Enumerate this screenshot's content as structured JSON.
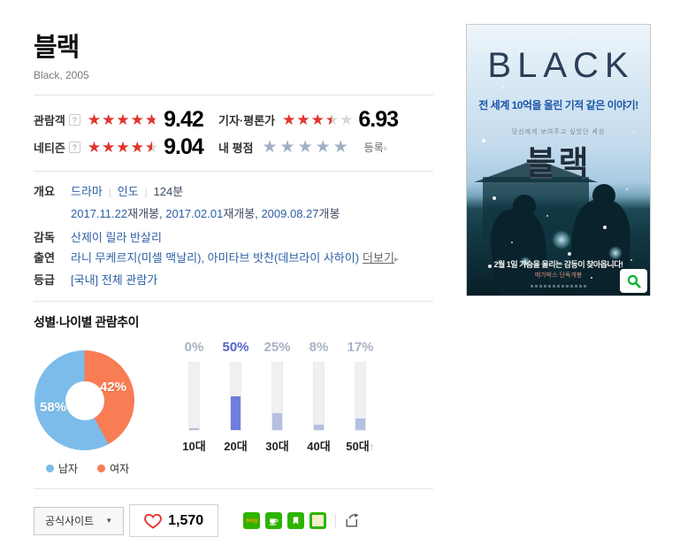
{
  "glyphs": {
    "stars": "★★★★★",
    "pipe": "|",
    "caret_down": "▼",
    "chevron_right": "›",
    "more_arrow": "▸",
    "up_arrow": "↑",
    "help": "?",
    "comma_sep": ", "
  },
  "header": {
    "title": "블랙",
    "subtitle": "Black, 2005"
  },
  "ratings": {
    "audience": {
      "label": "관람객",
      "score": "9.42",
      "stars_percent": 94.2
    },
    "critic": {
      "label": "기자·평론가",
      "score": "6.93",
      "stars_percent": 69.3
    },
    "netizen": {
      "label": "네티즌",
      "score": "9.04",
      "stars_percent": 90.4
    },
    "my": {
      "label": "내 평점",
      "stars_percent": 0,
      "action_label": "등록"
    }
  },
  "info": {
    "overview_label": "개요",
    "genre": "드라마",
    "country": "인도",
    "runtime": "124분",
    "release": [
      {
        "date": "2017.11.22",
        "suffix": "재개봉"
      },
      {
        "date": "2017.02.01",
        "suffix": "재개봉"
      },
      {
        "date": "2009.08.27",
        "suffix": "개봉"
      }
    ],
    "director_label": "감독",
    "director": "산제이 릴라 반살리",
    "cast_label": "출연",
    "cast": "라니 무케르지(미셀 맥날리), 아미타브 밧찬(데브라이 사하이)",
    "more_label": "더보기",
    "grade_label": "등급",
    "grade": "[국내] 전체 관람가"
  },
  "chart_data": [
    {
      "type": "pie",
      "subtype": "donut",
      "title": "성별·나이별 관람추이",
      "categories": [
        "남자",
        "여자"
      ],
      "values": [
        58,
        42
      ],
      "labels": [
        "58%",
        "42%"
      ],
      "unit": "%",
      "colors": [
        "#7cbcea",
        "#f87c54"
      ],
      "legend_position": "bottom"
    },
    {
      "type": "bar",
      "categories": [
        "10대",
        "20대",
        "30대",
        "40대",
        "50대"
      ],
      "values": [
        0,
        50,
        25,
        8,
        17
      ],
      "value_labels": [
        "0%",
        "50%",
        "25%",
        "8%",
        "17%"
      ],
      "unit": "%",
      "ylim": [
        0,
        100
      ],
      "highlight_index": 1,
      "last_suffix": "↑",
      "track_color": "#f0f0f3",
      "fill_color": "#b5c0df",
      "highlight_color": "#6c7ede",
      "label_color": "#a8b2c4",
      "highlight_label_color": "#5563c8"
    }
  ],
  "section_titles": {
    "demographics": "성별·나이별 관람추이"
  },
  "actions": {
    "official_site_label": "공식사이트",
    "like_count": "1,570",
    "blog_icon_text": "blog"
  },
  "poster": {
    "title_en": "BLACK",
    "tagline": "전 세계 10억을 울린 기적 같은 이야기!",
    "small_copy": "당신에게 보여주고 싶었던 세상",
    "title_kr": "블랙",
    "release_copy": "2월 1일 가슴을 울리는 감동이 찾아옵니다!",
    "distributor": "메가박스 단독개봉"
  },
  "colors": {
    "star_red": "#e3342e",
    "star_gray": "#d7d7d7",
    "my_star_gray_blue": "#9fb1c3",
    "link_blue": "#2d5fa5",
    "naver_green": "#2db400",
    "donut_male_blue": "#7cbcea",
    "donut_female_orange": "#f87c54"
  }
}
